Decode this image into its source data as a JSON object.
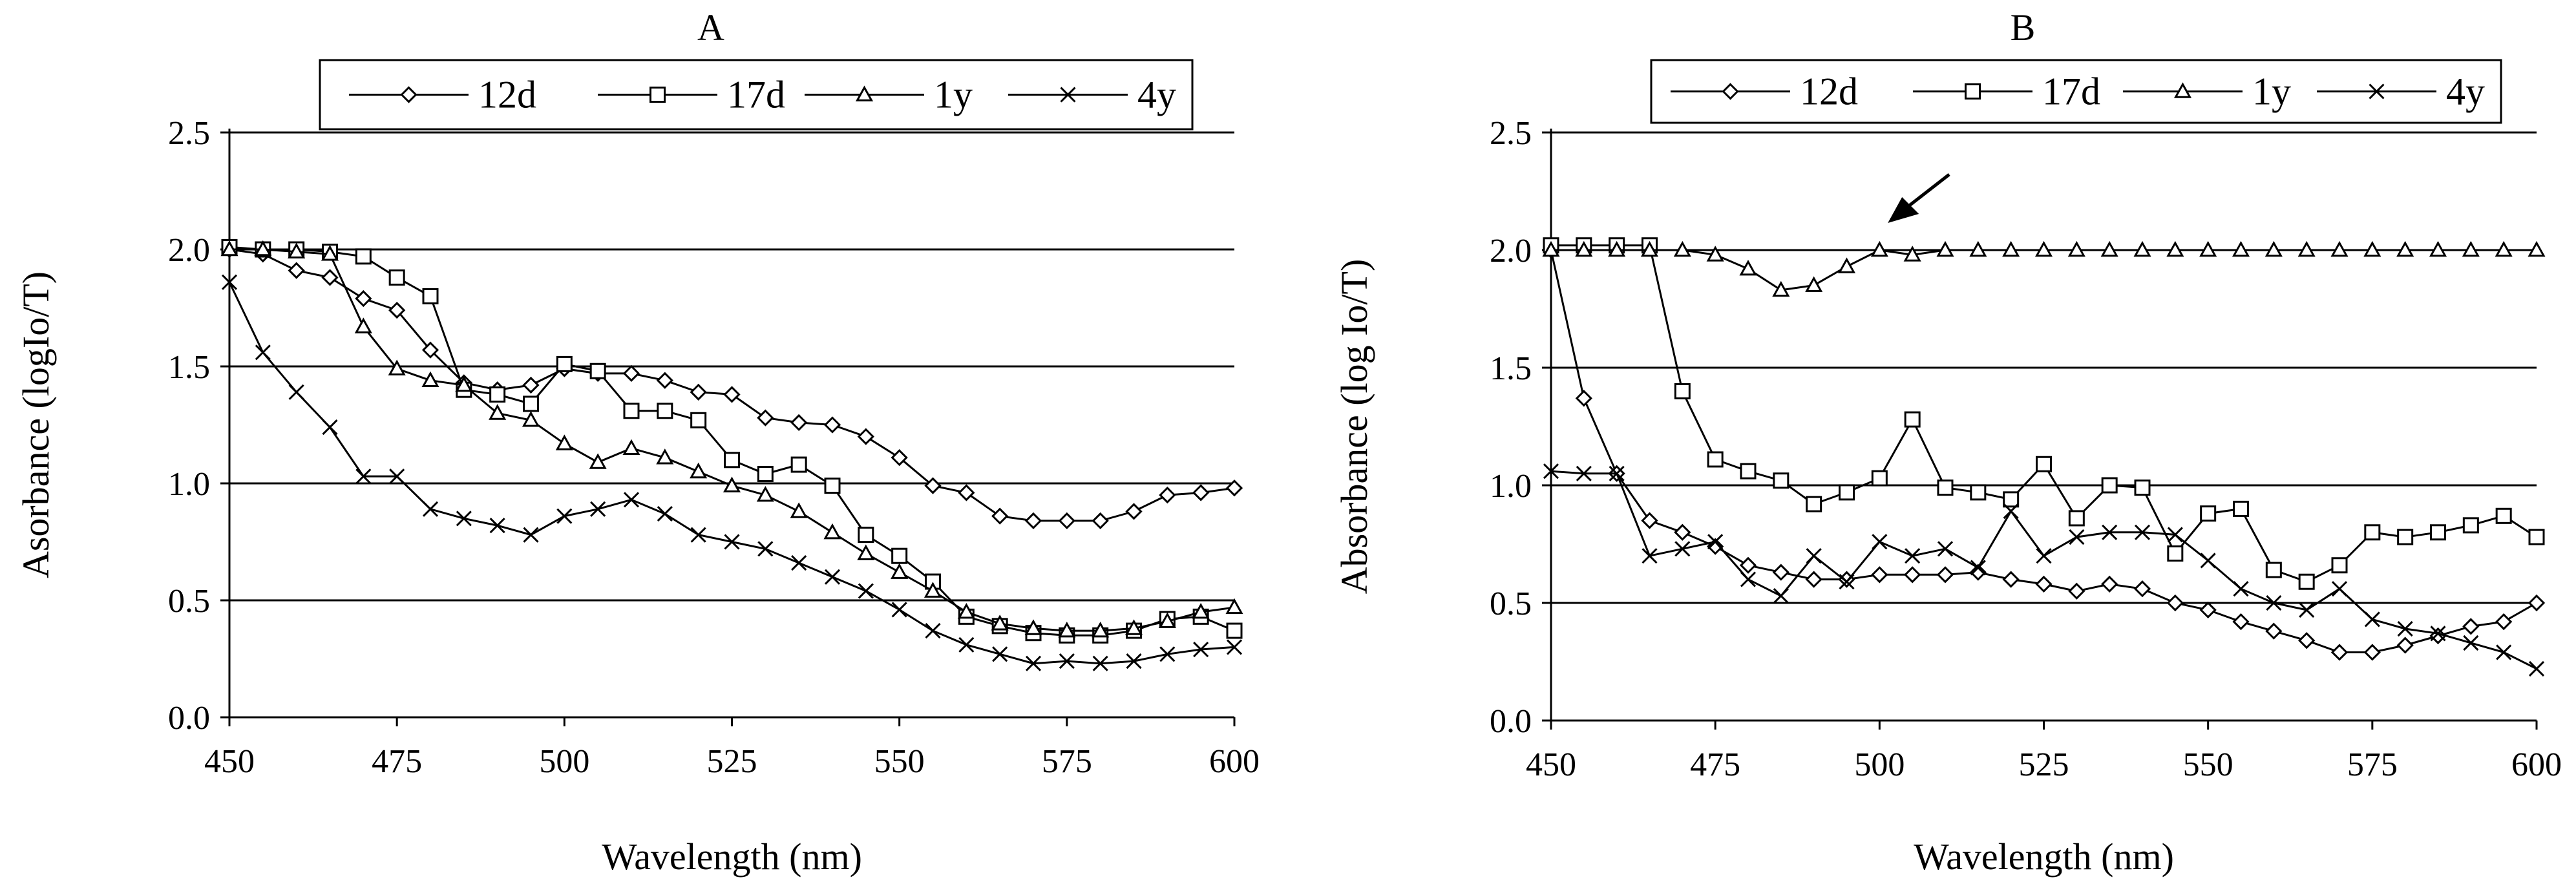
{
  "chart_data": [
    {
      "type": "line",
      "title": "A",
      "xlabel": "Wavelength (nm)",
      "ylabel": "Asorbance (logIo/T)",
      "xlim": [
        450,
        600
      ],
      "ylim": [
        0.0,
        2.5
      ],
      "grid": "horizontal",
      "legend": "top",
      "xticks": [
        "450",
        "475",
        "500",
        "525",
        "550",
        "575",
        "600"
      ],
      "yticks": [
        "0.0",
        "0.5",
        "1.0",
        "1.5",
        "2.0",
        "2.5"
      ],
      "series": [
        {
          "name": "12d",
          "marker": "diamond",
          "x": [
            450,
            455,
            460,
            465,
            470,
            475,
            480,
            485,
            490,
            495,
            500,
            505,
            510,
            515,
            520,
            525,
            530,
            535,
            540,
            545,
            550,
            555,
            560,
            565,
            570,
            575,
            580,
            585,
            590,
            595,
            600
          ],
          "y": [
            2.0,
            1.98,
            1.91,
            1.88,
            1.79,
            1.74,
            1.57,
            1.43,
            1.4,
            1.42,
            1.49,
            1.47,
            1.47,
            1.44,
            1.39,
            1.38,
            1.28,
            1.26,
            1.25,
            1.2,
            1.11,
            0.99,
            0.96,
            0.86,
            0.84,
            0.84,
            0.84,
            0.88,
            0.95,
            0.96,
            0.98
          ]
        },
        {
          "name": "17d",
          "marker": "square",
          "x": [
            450,
            455,
            460,
            465,
            470,
            475,
            480,
            485,
            490,
            495,
            500,
            505,
            510,
            515,
            520,
            525,
            530,
            535,
            540,
            545,
            550,
            555,
            560,
            565,
            570,
            575,
            580,
            585,
            590,
            595,
            600
          ],
          "y": [
            2.01,
            2.0,
            2.0,
            1.99,
            1.97,
            1.88,
            1.8,
            1.4,
            1.38,
            1.34,
            1.51,
            1.48,
            1.31,
            1.31,
            1.27,
            1.1,
            1.04,
            1.08,
            0.99,
            0.78,
            0.69,
            0.58,
            0.43,
            0.39,
            0.36,
            0.35,
            0.35,
            0.37,
            0.42,
            0.43,
            0.37
          ]
        },
        {
          "name": "1y",
          "marker": "triangle",
          "x": [
            450,
            455,
            460,
            465,
            470,
            475,
            480,
            485,
            490,
            495,
            500,
            505,
            510,
            515,
            520,
            525,
            530,
            535,
            540,
            545,
            550,
            555,
            560,
            565,
            570,
            575,
            580,
            585,
            590,
            595,
            600
          ],
          "y": [
            2.0,
            2.0,
            1.99,
            1.98,
            1.67,
            1.49,
            1.44,
            1.42,
            1.3,
            1.27,
            1.17,
            1.09,
            1.15,
            1.11,
            1.05,
            0.99,
            0.95,
            0.88,
            0.79,
            0.7,
            0.62,
            0.54,
            0.45,
            0.4,
            0.38,
            0.37,
            0.37,
            0.38,
            0.41,
            0.45,
            0.47
          ]
        },
        {
          "name": "4y",
          "marker": "x",
          "x": [
            450,
            455,
            460,
            465,
            470,
            475,
            480,
            485,
            490,
            495,
            500,
            505,
            510,
            515,
            520,
            525,
            530,
            535,
            540,
            545,
            550,
            555,
            560,
            565,
            570,
            575,
            580,
            585,
            590,
            595,
            600
          ],
          "y": [
            1.86,
            1.56,
            1.39,
            1.24,
            1.03,
            1.03,
            0.89,
            0.85,
            0.82,
            0.78,
            0.86,
            0.89,
            0.93,
            0.87,
            0.78,
            0.75,
            0.72,
            0.66,
            0.6,
            0.54,
            0.46,
            0.37,
            0.31,
            0.27,
            0.23,
            0.24,
            0.23,
            0.24,
            0.27,
            0.29,
            0.3
          ]
        }
      ]
    },
    {
      "type": "line",
      "title": "B",
      "xlabel": "Wavelength (nm)",
      "ylabel": "Absorbance (log Io/T)",
      "xlim": [
        450,
        600
      ],
      "ylim": [
        0.0,
        2.5
      ],
      "grid": "horizontal",
      "legend": "top",
      "xticks": [
        "450",
        "475",
        "500",
        "525",
        "550",
        "575",
        "600"
      ],
      "yticks": [
        "0.0",
        "0.5",
        "1.0",
        "1.5",
        "2.0",
        "2.5"
      ],
      "annotation": {
        "type": "arrow",
        "points_to": [
          505,
          2.0
        ]
      },
      "series": [
        {
          "name": "12d",
          "marker": "diamond",
          "x": [
            450,
            455,
            460,
            465,
            470,
            475,
            480,
            485,
            490,
            495,
            500,
            505,
            510,
            515,
            520,
            525,
            530,
            535,
            540,
            545,
            550,
            555,
            560,
            565,
            570,
            575,
            580,
            585,
            590,
            595,
            600
          ],
          "y": [
            2.0,
            1.37,
            1.05,
            0.85,
            0.8,
            0.74,
            0.66,
            0.63,
            0.6,
            0.6,
            0.62,
            0.62,
            0.62,
            0.63,
            0.6,
            0.58,
            0.55,
            0.58,
            0.56,
            0.5,
            0.47,
            0.42,
            0.38,
            0.34,
            0.29,
            0.29,
            0.32,
            0.36,
            0.4,
            0.42,
            0.5
          ]
        },
        {
          "name": "17d",
          "marker": "square",
          "x": [
            450,
            455,
            460,
            465,
            470,
            475,
            480,
            485,
            490,
            495,
            500,
            505,
            510,
            515,
            520,
            525,
            530,
            535,
            540,
            545,
            550,
            555,
            560,
            565,
            570,
            575,
            580,
            585,
            590,
            595,
            600
          ],
          "y": [
            2.02,
            2.02,
            2.02,
            2.02,
            1.4,
            1.11,
            1.06,
            1.02,
            0.92,
            0.97,
            1.03,
            1.28,
            0.99,
            0.97,
            0.94,
            1.09,
            0.86,
            1.0,
            0.99,
            0.71,
            0.88,
            0.9,
            0.64,
            0.59,
            0.66,
            0.8,
            0.78,
            0.8,
            0.83,
            0.87,
            0.78
          ]
        },
        {
          "name": "1y",
          "marker": "triangle",
          "x": [
            450,
            455,
            460,
            465,
            470,
            475,
            480,
            485,
            490,
            495,
            500,
            505,
            510,
            515,
            520,
            525,
            530,
            535,
            540,
            545,
            550,
            555,
            560,
            565,
            570,
            575,
            580,
            585,
            590,
            595,
            600
          ],
          "y": [
            2.0,
            2.0,
            2.0,
            2.0,
            2.0,
            1.98,
            1.92,
            1.83,
            1.85,
            1.93,
            2.0,
            1.98,
            2.0,
            2.0,
            2.0,
            2.0,
            2.0,
            2.0,
            2.0,
            2.0,
            2.0,
            2.0,
            2.0,
            2.0,
            2.0,
            2.0,
            2.0,
            2.0,
            2.0,
            2.0,
            2.0
          ]
        },
        {
          "name": "4y",
          "marker": "x",
          "x": [
            450,
            455,
            460,
            465,
            470,
            475,
            480,
            485,
            490,
            495,
            500,
            505,
            510,
            515,
            520,
            525,
            530,
            535,
            540,
            545,
            550,
            555,
            560,
            565,
            570,
            575,
            580,
            585,
            590,
            595,
            600
          ],
          "y": [
            1.06,
            1.05,
            1.05,
            0.7,
            0.73,
            0.76,
            0.6,
            0.53,
            0.7,
            0.59,
            0.76,
            0.7,
            0.73,
            0.65,
            0.89,
            0.7,
            0.78,
            0.8,
            0.8,
            0.79,
            0.68,
            0.56,
            0.5,
            0.47,
            0.56,
            0.43,
            0.39,
            0.37,
            0.33,
            0.29,
            0.22
          ]
        }
      ]
    }
  ]
}
